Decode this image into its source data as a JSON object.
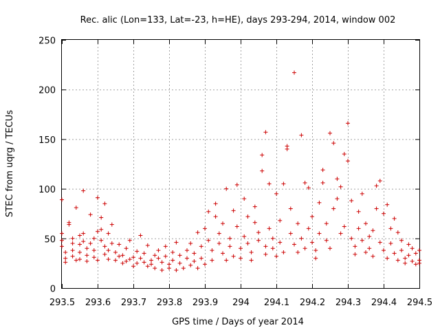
{
  "chart_data": {
    "type": "scatter",
    "title": "Rec. alic (Lon=133, Lat=-23, h=HE), days 293-294, 2014, window 002",
    "xlabel": "GPS time / Days of year 2014",
    "ylabel": "STEC from uqrg / TECUs",
    "xlim": [
      293.5,
      294.5
    ],
    "ylim": [
      0,
      250
    ],
    "xticks": [
      "293.5",
      "293.6",
      "293.7",
      "293.8",
      "293.9",
      "294",
      "294.1",
      "294.2",
      "294.3",
      "294.4",
      "294.5"
    ],
    "yticks": [
      "0",
      "50",
      "100",
      "150",
      "200",
      "250"
    ],
    "grid": true,
    "marker": "+",
    "point_color": "#cc0000",
    "series": [
      {
        "points": [
          [
            293.5,
            89
          ],
          [
            293.5,
            55
          ],
          [
            293.5,
            48
          ],
          [
            293.5,
            42
          ],
          [
            293.51,
            36
          ],
          [
            293.51,
            30
          ],
          [
            293.51,
            26
          ],
          [
            293.52,
            66
          ],
          [
            293.52,
            64
          ],
          [
            293.53,
            50
          ],
          [
            293.53,
            45
          ],
          [
            293.53,
            38
          ],
          [
            293.53,
            32
          ],
          [
            293.54,
            28
          ],
          [
            293.54,
            81
          ],
          [
            293.55,
            53
          ],
          [
            293.55,
            44
          ],
          [
            293.55,
            36
          ],
          [
            293.55,
            29
          ],
          [
            293.56,
            98
          ],
          [
            293.56,
            55
          ],
          [
            293.56,
            47
          ],
          [
            293.57,
            40
          ],
          [
            293.57,
            33
          ],
          [
            293.57,
            27
          ],
          [
            293.58,
            74
          ],
          [
            293.58,
            45
          ],
          [
            293.59,
            50
          ],
          [
            293.59,
            38
          ],
          [
            293.59,
            31
          ],
          [
            293.6,
            28
          ],
          [
            293.6,
            57
          ],
          [
            293.6,
            91
          ],
          [
            293.61,
            71
          ],
          [
            293.61,
            59
          ],
          [
            293.61,
            48
          ],
          [
            293.62,
            85
          ],
          [
            293.62,
            42
          ],
          [
            293.62,
            34
          ],
          [
            293.63,
            29
          ],
          [
            293.63,
            55
          ],
          [
            293.63,
            38
          ],
          [
            293.64,
            64
          ],
          [
            293.64,
            45
          ],
          [
            293.65,
            36
          ],
          [
            293.65,
            28
          ],
          [
            293.66,
            32
          ],
          [
            293.66,
            44
          ],
          [
            293.67,
            25
          ],
          [
            293.67,
            33
          ],
          [
            293.68,
            40
          ],
          [
            293.68,
            27
          ],
          [
            293.69,
            29
          ],
          [
            293.69,
            48
          ],
          [
            293.7,
            22
          ],
          [
            293.7,
            31
          ],
          [
            293.71,
            37
          ],
          [
            293.71,
            25
          ],
          [
            293.72,
            53
          ],
          [
            293.72,
            30
          ],
          [
            293.73,
            26
          ],
          [
            293.73,
            35
          ],
          [
            293.74,
            22
          ],
          [
            293.74,
            43
          ],
          [
            293.75,
            28
          ],
          [
            293.75,
            24
          ],
          [
            293.76,
            33
          ],
          [
            293.76,
            20
          ],
          [
            293.77,
            30
          ],
          [
            293.77,
            38
          ],
          [
            293.78,
            26
          ],
          [
            293.78,
            18
          ],
          [
            293.79,
            42
          ],
          [
            293.79,
            32
          ],
          [
            293.8,
            24
          ],
          [
            293.8,
            20
          ],
          [
            293.81,
            36
          ],
          [
            293.81,
            28
          ],
          [
            293.82,
            18
          ],
          [
            293.82,
            46
          ],
          [
            293.83,
            33
          ],
          [
            293.83,
            25
          ],
          [
            293.84,
            20
          ],
          [
            293.85,
            38
          ],
          [
            293.85,
            30
          ],
          [
            293.86,
            23
          ],
          [
            293.86,
            45
          ],
          [
            293.87,
            27
          ],
          [
            293.87,
            35
          ],
          [
            293.88,
            20
          ],
          [
            293.88,
            56
          ],
          [
            293.89,
            42
          ],
          [
            293.89,
            30
          ],
          [
            293.9,
            24
          ],
          [
            293.9,
            60
          ],
          [
            293.91,
            77
          ],
          [
            293.91,
            48
          ],
          [
            293.92,
            38
          ],
          [
            293.92,
            28
          ],
          [
            293.93,
            85
          ],
          [
            293.93,
            72
          ],
          [
            293.94,
            55
          ],
          [
            293.94,
            45
          ],
          [
            293.95,
            65
          ],
          [
            293.95,
            35
          ],
          [
            293.96,
            28
          ],
          [
            293.96,
            100
          ],
          [
            293.97,
            50
          ],
          [
            293.97,
            42
          ],
          [
            293.98,
            78
          ],
          [
            293.98,
            32
          ],
          [
            293.99,
            62
          ],
          [
            293.99,
            104
          ],
          [
            294.0,
            40
          ],
          [
            294.0,
            30
          ],
          [
            294.01,
            90
          ],
          [
            294.01,
            52
          ],
          [
            294.02,
            72
          ],
          [
            294.02,
            45
          ],
          [
            294.03,
            36
          ],
          [
            294.03,
            28
          ],
          [
            294.04,
            82
          ],
          [
            294.04,
            66
          ],
          [
            294.05,
            56
          ],
          [
            294.05,
            48
          ],
          [
            294.06,
            118
          ],
          [
            294.06,
            134
          ],
          [
            294.07,
            42
          ],
          [
            294.07,
            34
          ],
          [
            294.07,
            157
          ],
          [
            294.08,
            105
          ],
          [
            294.08,
            60
          ],
          [
            294.09,
            50
          ],
          [
            294.09,
            40
          ],
          [
            294.1,
            32
          ],
          [
            294.1,
            95
          ],
          [
            294.11,
            68
          ],
          [
            294.11,
            46
          ],
          [
            294.12,
            36
          ],
          [
            294.12,
            105
          ],
          [
            294.13,
            140
          ],
          [
            294.13,
            143
          ],
          [
            294.14,
            80
          ],
          [
            294.14,
            55
          ],
          [
            294.15,
            44
          ],
          [
            294.15,
            217
          ],
          [
            294.16,
            36
          ],
          [
            294.16,
            65
          ],
          [
            294.17,
            154
          ],
          [
            294.17,
            50
          ],
          [
            294.18,
            40
          ],
          [
            294.18,
            106
          ],
          [
            294.19,
            101
          ],
          [
            294.19,
            60
          ],
          [
            294.2,
            72
          ],
          [
            294.2,
            46
          ],
          [
            294.21,
            38
          ],
          [
            294.21,
            30
          ],
          [
            294.22,
            86
          ],
          [
            294.22,
            55
          ],
          [
            294.23,
            119
          ],
          [
            294.23,
            106
          ],
          [
            294.24,
            65
          ],
          [
            294.24,
            48
          ],
          [
            294.25,
            40
          ],
          [
            294.25,
            156
          ],
          [
            294.26,
            146
          ],
          [
            294.26,
            80
          ],
          [
            294.27,
            110
          ],
          [
            294.27,
            90
          ],
          [
            294.28,
            102
          ],
          [
            294.28,
            55
          ],
          [
            294.29,
            135
          ],
          [
            294.29,
            62
          ],
          [
            294.3,
            128
          ],
          [
            294.3,
            166
          ],
          [
            294.31,
            88
          ],
          [
            294.31,
            50
          ],
          [
            294.32,
            42
          ],
          [
            294.32,
            34
          ],
          [
            294.33,
            77
          ],
          [
            294.33,
            60
          ],
          [
            294.34,
            95
          ],
          [
            294.34,
            48
          ],
          [
            294.35,
            36
          ],
          [
            294.35,
            65
          ],
          [
            294.36,
            52
          ],
          [
            294.36,
            40
          ],
          [
            294.37,
            58
          ],
          [
            294.37,
            32
          ],
          [
            294.38,
            80
          ],
          [
            294.38,
            103
          ],
          [
            294.39,
            108
          ],
          [
            294.39,
            46
          ],
          [
            294.4,
            75
          ],
          [
            294.4,
            38
          ],
          [
            294.41,
            84
          ],
          [
            294.41,
            30
          ],
          [
            294.42,
            60
          ],
          [
            294.42,
            45
          ],
          [
            294.43,
            70
          ],
          [
            294.43,
            35
          ],
          [
            294.44,
            56
          ],
          [
            294.44,
            28
          ],
          [
            294.45,
            48
          ],
          [
            294.45,
            38
          ],
          [
            294.46,
            30
          ],
          [
            294.46,
            25
          ],
          [
            294.47,
            44
          ],
          [
            294.47,
            33
          ],
          [
            294.48,
            27
          ],
          [
            294.48,
            40
          ],
          [
            294.49,
            35
          ],
          [
            294.49,
            24
          ],
          [
            294.5,
            38
          ],
          [
            294.5,
            28
          ],
          [
            294.5,
            25
          ]
        ]
      }
    ]
  }
}
